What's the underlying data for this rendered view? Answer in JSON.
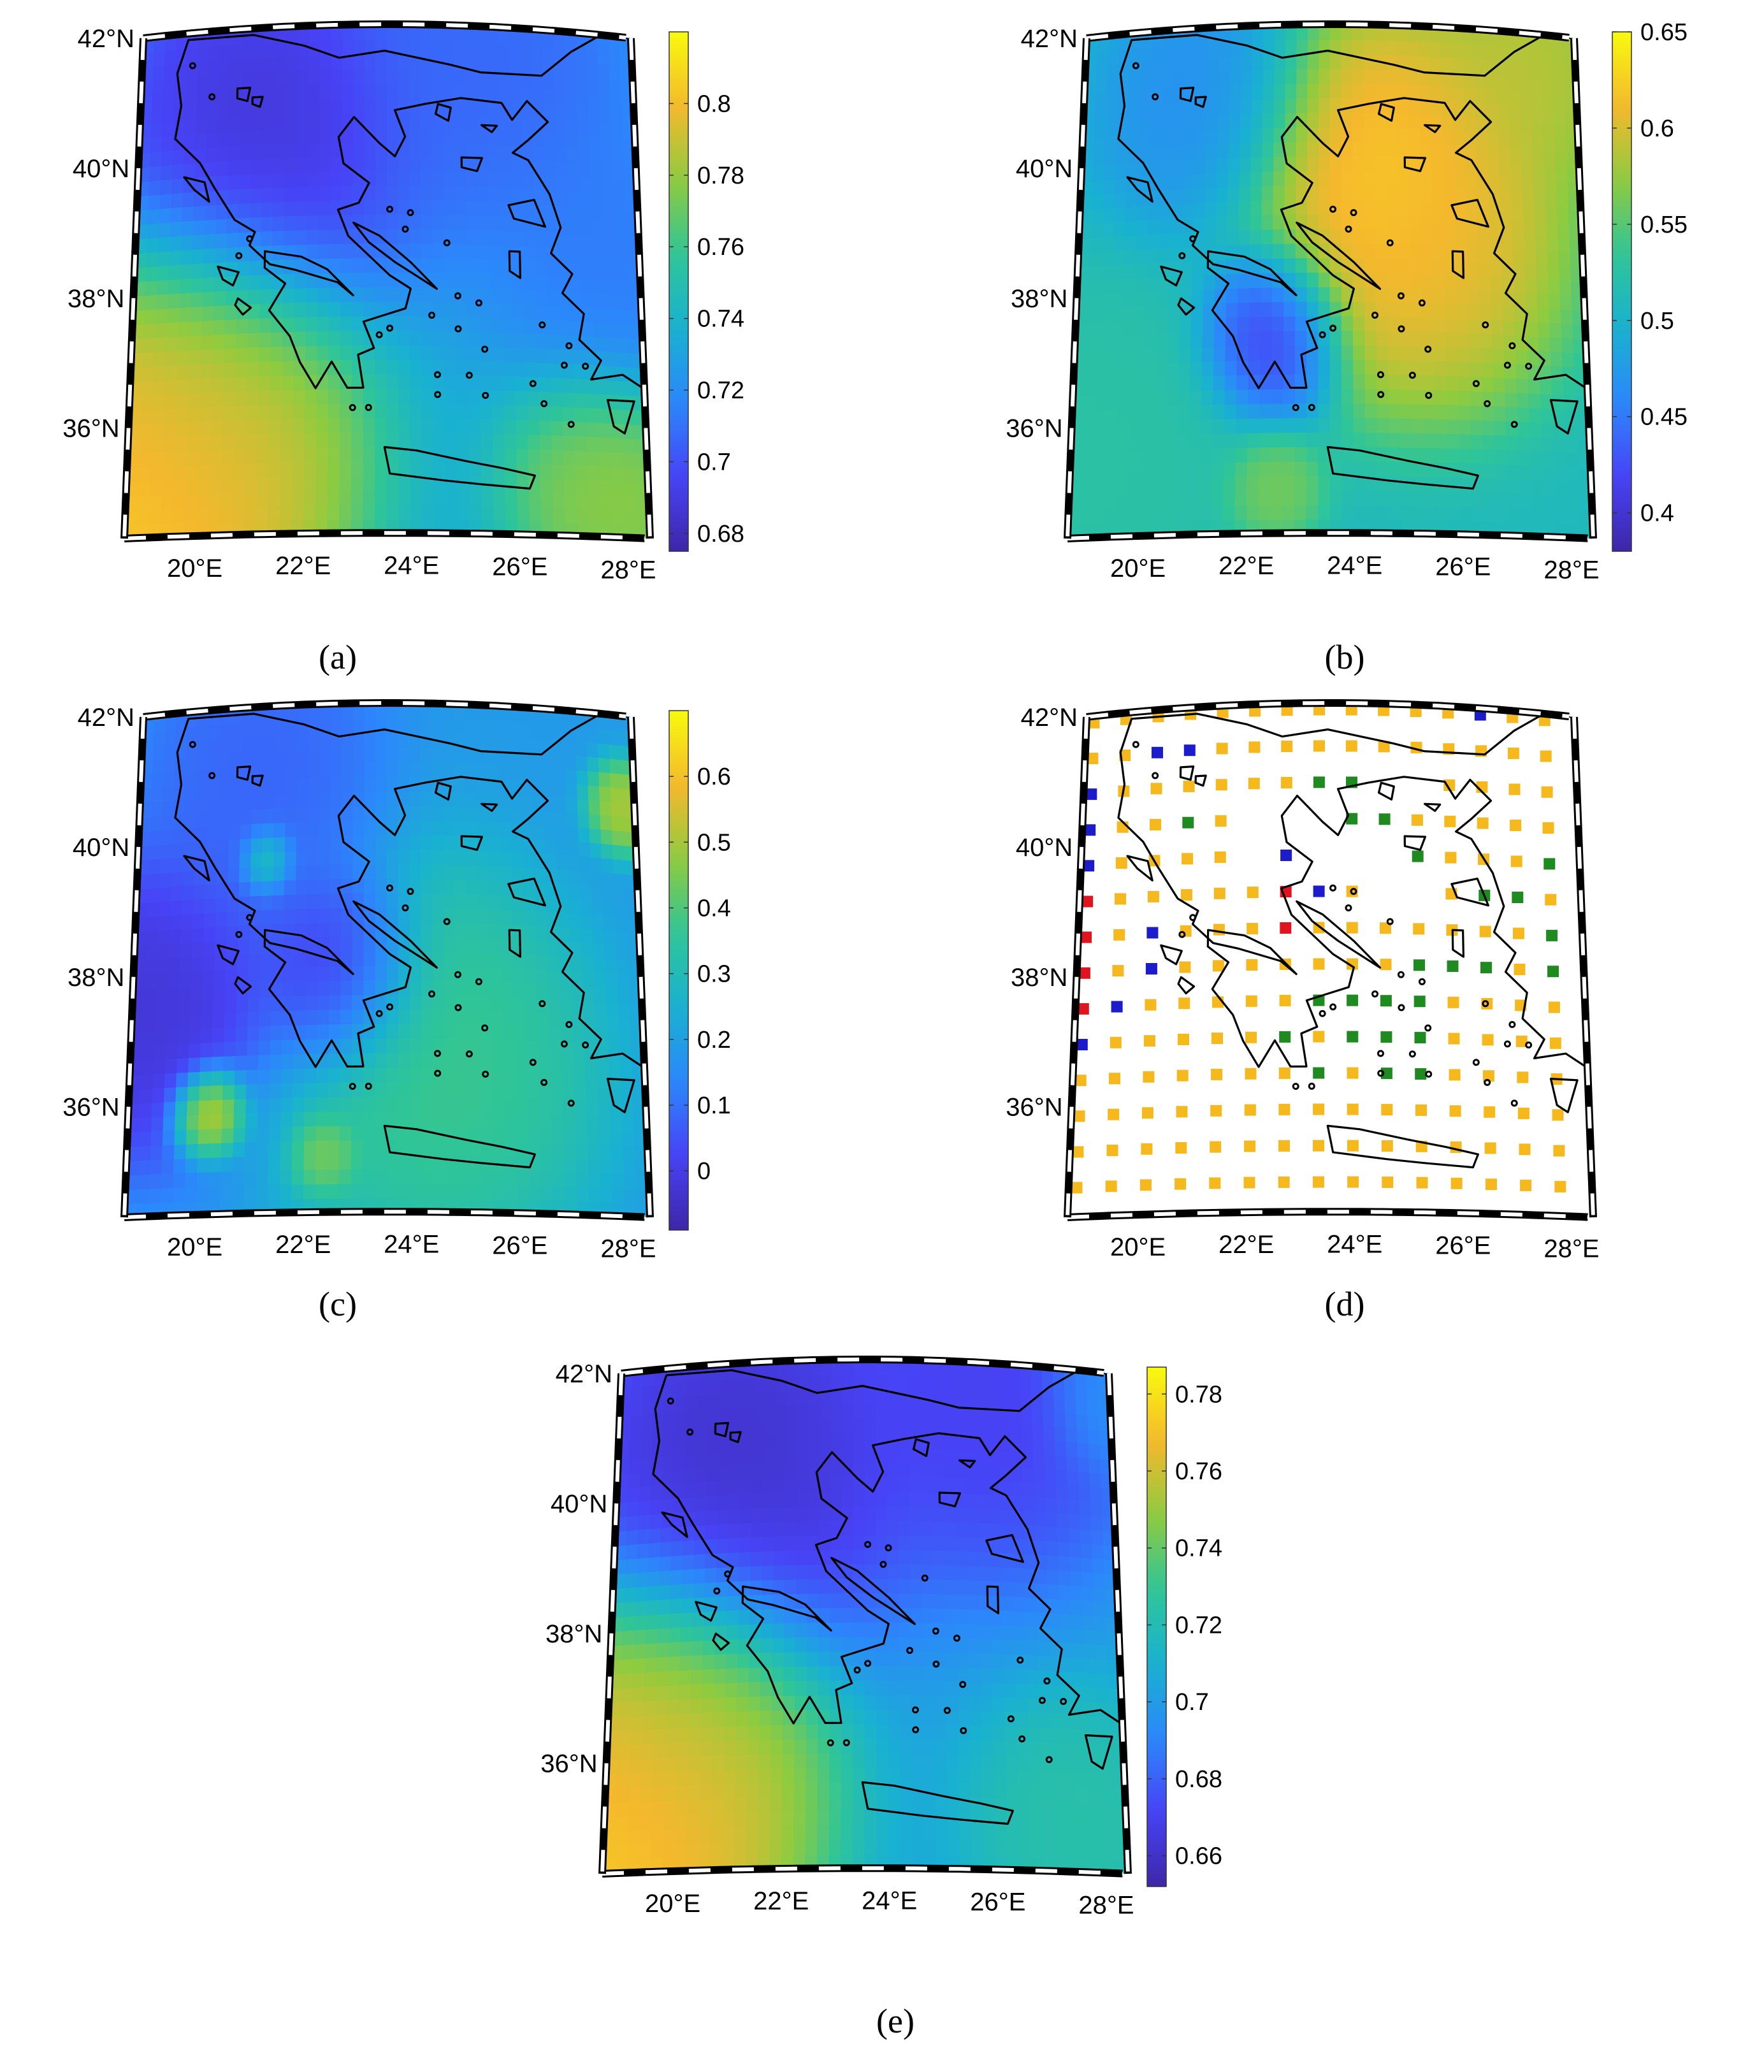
{
  "figure": {
    "panels": [
      {
        "id": "a",
        "caption": "(a)",
        "type": "continuous",
        "colorbar": {
          "min": 0.675,
          "max": 0.82,
          "ticks": [
            "0.68",
            "0.7",
            "0.72",
            "0.74",
            "0.76",
            "0.78",
            "0.8"
          ],
          "tick_values": [
            0.68,
            0.7,
            0.72,
            0.74,
            0.76,
            0.78,
            0.8
          ]
        },
        "lon_labels": [
          "20°E",
          "22°E",
          "24°E",
          "26°E",
          "28°E"
        ],
        "lat_labels": [
          "42°N",
          "40°N",
          "38°N",
          "36°N"
        ]
      },
      {
        "id": "b",
        "caption": "(b)",
        "type": "continuous",
        "colorbar": {
          "min": 0.38,
          "max": 0.65,
          "ticks": [
            "0.4",
            "0.45",
            "0.5",
            "0.55",
            "0.6",
            "0.65"
          ],
          "tick_values": [
            0.4,
            0.45,
            0.5,
            0.55,
            0.6,
            0.65
          ]
        },
        "lon_labels": [
          "20°E",
          "22°E",
          "24°E",
          "26°E",
          "28°E"
        ],
        "lat_labels": [
          "42°N",
          "40°N",
          "38°N",
          "36°N"
        ]
      },
      {
        "id": "c",
        "caption": "(c)",
        "type": "continuous",
        "colorbar": {
          "min": -0.09,
          "max": 0.7,
          "ticks": [
            "0",
            "0.1",
            "0.2",
            "0.3",
            "0.4",
            "0.5",
            "0.6"
          ],
          "tick_values": [
            0,
            0.1,
            0.2,
            0.3,
            0.4,
            0.5,
            0.6
          ]
        },
        "lon_labels": [
          "20°E",
          "22°E",
          "24°E",
          "26°E",
          "28°E"
        ],
        "lat_labels": [
          "42°N",
          "40°N",
          "38°N",
          "36°N"
        ]
      },
      {
        "id": "d",
        "caption": "(d)",
        "type": "categorical",
        "category_colors": {
          "orange": "#f5b81d",
          "green": "#1f8a1f",
          "blue": "#1c1ccc",
          "red": "#e0141f"
        },
        "lon_labels": [
          "20°E",
          "22°E",
          "24°E",
          "26°E",
          "28°E"
        ],
        "lat_labels": [
          "42°N",
          "40°N",
          "38°N",
          "36°N"
        ]
      },
      {
        "id": "e",
        "caption": "(e)",
        "type": "continuous",
        "colorbar": {
          "min": 0.652,
          "max": 0.787,
          "ticks": [
            "0.66",
            "0.68",
            "0.7",
            "0.72",
            "0.74",
            "0.76",
            "0.78"
          ],
          "tick_values": [
            0.66,
            0.68,
            0.7,
            0.72,
            0.74,
            0.76,
            0.78
          ]
        },
        "lon_labels": [
          "20°E",
          "22°E",
          "24°E",
          "26°E",
          "28°E"
        ],
        "lat_labels": [
          "42°N",
          "40°N",
          "38°N",
          "36°N"
        ]
      }
    ],
    "colormap": [
      "#3e26a8",
      "#4743f6",
      "#2c87fb",
      "#19b1d1",
      "#2fc598",
      "#8fcb3f",
      "#f5b82d",
      "#f8fa0d"
    ]
  }
}
